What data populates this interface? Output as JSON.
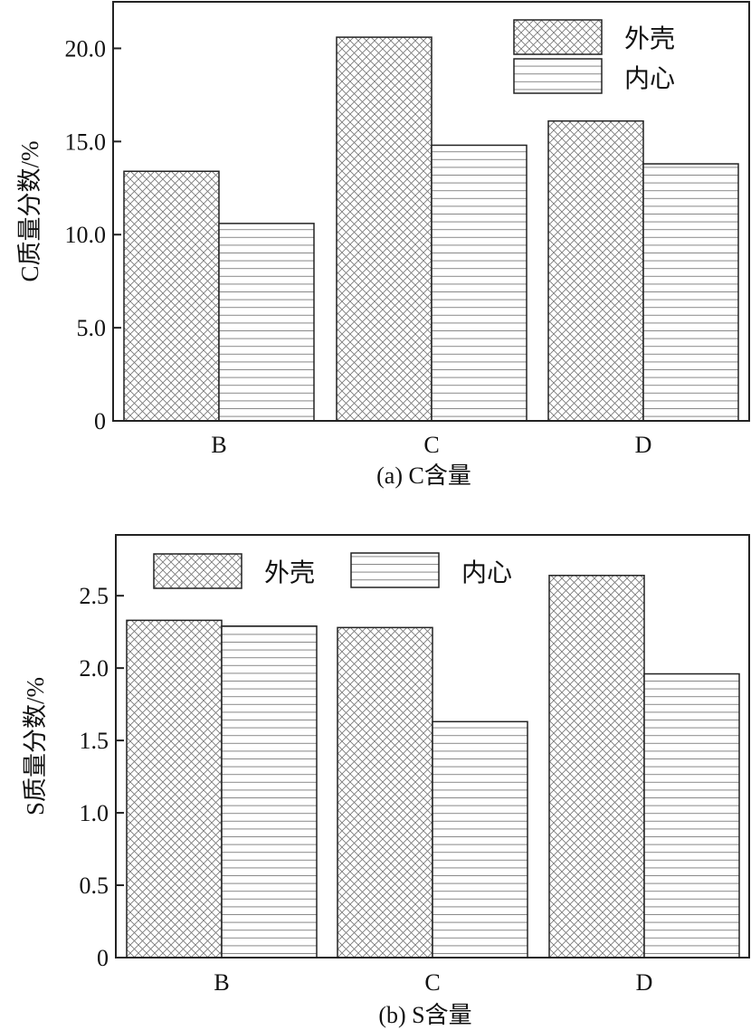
{
  "chart_data": [
    {
      "type": "bar",
      "title": "(a) C含量",
      "xlabel": "",
      "ylabel": "C质量分数/%",
      "categories": [
        "B",
        "C",
        "D"
      ],
      "ylim": [
        0,
        22.5
      ],
      "yticks": [
        0,
        5,
        10,
        15,
        20
      ],
      "ytick_labels": [
        "0",
        "5.0",
        "10.0",
        "15.0",
        "20.0"
      ],
      "legend_position": "top-right",
      "grid": false,
      "series": [
        {
          "name": "外壳",
          "pattern": "crosshatch",
          "values": [
            13.4,
            20.6,
            16.1
          ]
        },
        {
          "name": "内心",
          "pattern": "horizontal-lines",
          "values": [
            10.6,
            14.8,
            13.8
          ]
        }
      ]
    },
    {
      "type": "bar",
      "title": "(b) S含量",
      "xlabel": "",
      "ylabel": "S质量分数/%",
      "categories": [
        "B",
        "C",
        "D"
      ],
      "ylim": [
        0,
        2.92
      ],
      "yticks": [
        0,
        0.5,
        1.0,
        1.5,
        2.0,
        2.5
      ],
      "ytick_labels": [
        "0",
        "0.5",
        "1.0",
        "1.5",
        "2.0",
        "2.5"
      ],
      "legend_position": "top",
      "grid": false,
      "series": [
        {
          "name": "外壳",
          "pattern": "crosshatch",
          "values": [
            2.33,
            2.28,
            2.64
          ]
        },
        {
          "name": "内心",
          "pattern": "horizontal-lines",
          "values": [
            2.29,
            1.63,
            1.96
          ]
        }
      ]
    }
  ],
  "colors": {
    "axis": "#222222",
    "hatch": "#777777"
  }
}
